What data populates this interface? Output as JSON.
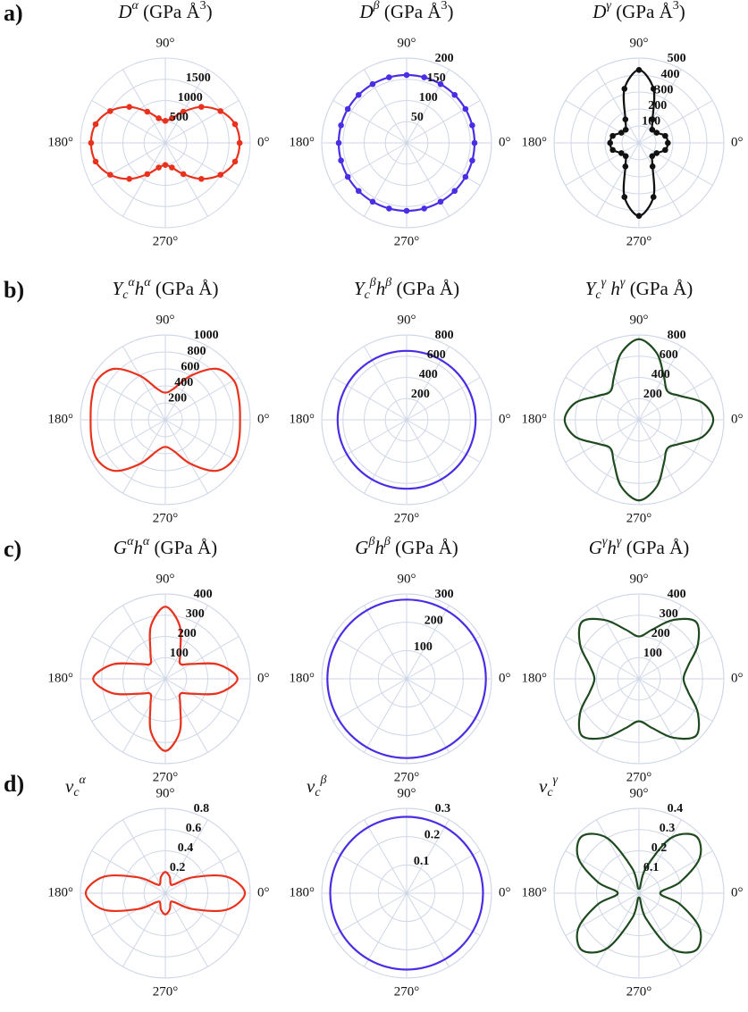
{
  "chart_data": [
    {
      "type": "polar",
      "panel": "a)",
      "title": [
        {
          "text": "D",
          "italic": true
        },
        {
          "text": "α",
          "shift": "sup",
          "italic": true
        },
        {
          "text": " (GPa Å"
        },
        {
          "text": "3",
          "shift": "sup"
        },
        {
          "text": ")"
        }
      ],
      "theta": [
        0,
        15,
        30,
        45,
        60,
        75,
        90,
        105,
        120,
        135,
        150,
        165,
        180,
        195,
        210,
        225,
        240,
        255,
        270,
        285,
        300,
        315,
        330,
        345
      ],
      "values": [
        1750,
        1700,
        1500,
        1200,
        850,
        600,
        520,
        600,
        850,
        1200,
        1500,
        1700,
        1750,
        1700,
        1500,
        1200,
        850,
        600,
        520,
        600,
        850,
        1200,
        1500,
        1700
      ],
      "color": "#e8321e",
      "markers": true,
      "rlim": [
        0,
        2000
      ],
      "rticks": [
        500,
        1000,
        1500
      ],
      "angle_grid_step": 30,
      "thetaticks": [
        {
          "value": 90,
          "label": "90°"
        },
        {
          "value": 180,
          "label": "180°"
        },
        {
          "value": 0,
          "label": "0°"
        },
        {
          "value": 270,
          "label": "270°"
        }
      ]
    },
    {
      "type": "polar",
      "title": [
        {
          "text": "D",
          "italic": true
        },
        {
          "text": "β",
          "shift": "sup",
          "italic": true
        },
        {
          "text": " (GPa Å"
        },
        {
          "text": "3",
          "shift": "sup"
        },
        {
          "text": ")"
        }
      ],
      "theta": [
        0,
        15,
        30,
        45,
        60,
        75,
        90,
        105,
        120,
        135,
        150,
        165,
        180,
        195,
        210,
        225,
        240,
        255,
        270,
        285,
        300,
        315,
        330,
        345
      ],
      "values": [
        160,
        160,
        160,
        160,
        160,
        160,
        160,
        160,
        160,
        160,
        160,
        160,
        160,
        160,
        160,
        160,
        160,
        160,
        160,
        160,
        160,
        160,
        160,
        160
      ],
      "color": "#4a2ee6",
      "markers": true,
      "rlim": [
        0,
        200
      ],
      "rticks": [
        50,
        100,
        150,
        200
      ],
      "angle_grid_step": 30,
      "thetaticks": [
        {
          "value": 90,
          "label": "90°"
        },
        {
          "value": 180,
          "label": "180°"
        },
        {
          "value": 0,
          "label": "0°"
        },
        {
          "value": 270,
          "label": "270°"
        }
      ]
    },
    {
      "type": "polar",
      "title": [
        {
          "text": "D",
          "italic": true
        },
        {
          "text": "γ",
          "shift": "sup",
          "italic": true
        },
        {
          "text": " (GPa Å"
        },
        {
          "text": "3",
          "shift": "sup"
        },
        {
          "text": ")"
        }
      ],
      "theta": [
        0,
        15,
        30,
        45,
        60,
        75,
        90,
        105,
        120,
        135,
        150,
        165,
        180,
        195,
        210,
        225,
        240,
        255,
        270,
        285,
        300,
        315,
        330,
        345
      ],
      "values": [
        170,
        160,
        120,
        110,
        160,
        330,
        430,
        330,
        160,
        110,
        120,
        160,
        170,
        160,
        120,
        110,
        160,
        330,
        430,
        330,
        160,
        110,
        120,
        160
      ],
      "color": "#111111",
      "markers": true,
      "rlim": [
        0,
        500
      ],
      "rticks": [
        100,
        200,
        300,
        400,
        500
      ],
      "angle_grid_step": 30,
      "thetaticks": [
        {
          "value": 90,
          "label": "90°"
        },
        {
          "value": 180,
          "label": "180°"
        },
        {
          "value": 0,
          "label": "0°"
        },
        {
          "value": 270,
          "label": "270°"
        }
      ]
    },
    {
      "type": "polar",
      "panel": "b)",
      "title": [
        {
          "text": "Y",
          "italic": true
        },
        {
          "text": "c",
          "shift": "sub",
          "italic": true
        },
        {
          "text": "α",
          "shift": "sup",
          "italic": true
        },
        {
          "text": "h",
          "italic": true
        },
        {
          "text": "α",
          "shift": "sup",
          "italic": true
        },
        {
          "text": " (GPa Å)"
        }
      ],
      "theta": [
        0,
        15,
        30,
        45,
        60,
        75,
        90,
        105,
        120,
        135,
        150,
        165,
        180,
        195,
        210,
        225,
        240,
        255,
        270,
        285,
        300,
        315,
        330,
        345
      ],
      "values": [
        880,
        900,
        930,
        850,
        600,
        380,
        320,
        380,
        600,
        850,
        930,
        900,
        880,
        900,
        930,
        850,
        600,
        380,
        320,
        380,
        600,
        850,
        930,
        900
      ],
      "color": "#e8321e",
      "markers": false,
      "rlim": [
        0,
        1000
      ],
      "rticks": [
        200,
        400,
        600,
        800,
        1000
      ],
      "angle_grid_step": 30,
      "thetaticks": [
        {
          "value": 90,
          "label": "90°"
        },
        {
          "value": 180,
          "label": "180°"
        },
        {
          "value": 0,
          "label": "0°"
        },
        {
          "value": 270,
          "label": "270°"
        }
      ]
    },
    {
      "type": "polar",
      "title": [
        {
          "text": "Y",
          "italic": true
        },
        {
          "text": "c",
          "shift": "sub",
          "italic": true
        },
        {
          "text": "β",
          "shift": "sup",
          "italic": true
        },
        {
          "text": "h",
          "italic": true
        },
        {
          "text": "β",
          "shift": "sup",
          "italic": true
        },
        {
          "text": " (GPa Å)"
        }
      ],
      "theta": [
        0,
        15,
        30,
        45,
        60,
        75,
        90,
        105,
        120,
        135,
        150,
        165,
        180,
        195,
        210,
        225,
        240,
        255,
        270,
        285,
        300,
        315,
        330,
        345
      ],
      "values": [
        650,
        650,
        650,
        650,
        650,
        650,
        650,
        650,
        650,
        650,
        650,
        650,
        650,
        650,
        650,
        650,
        650,
        650,
        650,
        650,
        650,
        650,
        650,
        650
      ],
      "color": "#4a2ee6",
      "markers": false,
      "rlim": [
        0,
        800
      ],
      "rticks": [
        200,
        400,
        600,
        800
      ],
      "angle_grid_step": 30,
      "thetaticks": [
        {
          "value": 90,
          "label": "90°"
        },
        {
          "value": 180,
          "label": "180°"
        },
        {
          "value": 0,
          "label": "0°"
        },
        {
          "value": 270,
          "label": "270°"
        }
      ]
    },
    {
      "type": "polar",
      "title": [
        {
          "text": "Y",
          "italic": true
        },
        {
          "text": "c",
          "shift": "sub",
          "italic": true
        },
        {
          "text": "γ",
          "shift": "sup",
          "italic": true
        },
        {
          "text": " h",
          "italic": true
        },
        {
          "text": "γ",
          "shift": "sup",
          "italic": true
        },
        {
          "text": " (GPa Å)"
        }
      ],
      "theta": [
        0,
        15,
        30,
        45,
        60,
        75,
        90,
        105,
        120,
        135,
        150,
        165,
        180,
        195,
        210,
        225,
        240,
        255,
        270,
        285,
        300,
        315,
        330,
        345
      ],
      "values": [
        700,
        620,
        450,
        380,
        470,
        650,
        760,
        650,
        470,
        380,
        450,
        620,
        700,
        620,
        450,
        380,
        470,
        650,
        760,
        650,
        470,
        380,
        450,
        620
      ],
      "color": "#1f4a1f",
      "markers": false,
      "rlim": [
        0,
        800
      ],
      "rticks": [
        200,
        400,
        600,
        800
      ],
      "angle_grid_step": 30,
      "thetaticks": [
        {
          "value": 90,
          "label": "90°"
        },
        {
          "value": 180,
          "label": "180°"
        },
        {
          "value": 0,
          "label": "0°"
        },
        {
          "value": 270,
          "label": "270°"
        }
      ]
    },
    {
      "type": "polar",
      "panel": "c)",
      "title": [
        {
          "text": "G",
          "italic": true
        },
        {
          "text": "α",
          "shift": "sup",
          "italic": true
        },
        {
          "text": "h",
          "italic": true
        },
        {
          "text": "α",
          "shift": "sup",
          "italic": true
        },
        {
          "text": "  (GPa Å)"
        }
      ],
      "theta": [
        0,
        15,
        30,
        45,
        60,
        75,
        90,
        105,
        120,
        135,
        150,
        165,
        180,
        195,
        210,
        225,
        240,
        255,
        270,
        285,
        300,
        315,
        330,
        345
      ],
      "values": [
        340,
        260,
        140,
        100,
        140,
        260,
        340,
        260,
        140,
        100,
        140,
        260,
        340,
        260,
        140,
        100,
        140,
        260,
        340,
        260,
        140,
        100,
        140,
        260
      ],
      "color": "#e8321e",
      "markers": false,
      "rlim": [
        0,
        400
      ],
      "rticks": [
        100,
        200,
        300,
        400
      ],
      "angle_grid_step": 30,
      "thetaticks": [
        {
          "value": 90,
          "label": "90°"
        },
        {
          "value": 180,
          "label": "180°"
        },
        {
          "value": 0,
          "label": "0°"
        },
        {
          "value": 270,
          "label": "270°"
        }
      ]
    },
    {
      "type": "polar",
      "title": [
        {
          "text": "G",
          "italic": true
        },
        {
          "text": "β",
          "shift": "sup",
          "italic": true
        },
        {
          "text": "h",
          "italic": true
        },
        {
          "text": "β",
          "shift": "sup",
          "italic": true
        },
        {
          "text": "  (GPa Å)"
        }
      ],
      "theta": [
        0,
        15,
        30,
        45,
        60,
        75,
        90,
        105,
        120,
        135,
        150,
        165,
        180,
        195,
        210,
        225,
        240,
        255,
        270,
        285,
        300,
        315,
        330,
        345
      ],
      "values": [
        280,
        280,
        280,
        280,
        280,
        280,
        280,
        280,
        280,
        280,
        280,
        280,
        280,
        280,
        280,
        280,
        280,
        280,
        280,
        280,
        280,
        280,
        280,
        280
      ],
      "color": "#4a2ee6",
      "markers": false,
      "rlim": [
        0,
        300
      ],
      "rticks": [
        100,
        200,
        300
      ],
      "angle_grid_step": 30,
      "thetaticks": [
        {
          "value": 90,
          "label": "90°"
        },
        {
          "value": 180,
          "label": "180°"
        },
        {
          "value": 0,
          "label": "0°"
        },
        {
          "value": 270,
          "label": "270°"
        }
      ]
    },
    {
      "type": "polar",
      "title": [
        {
          "text": "G",
          "italic": true
        },
        {
          "text": "γ",
          "shift": "sup",
          "italic": true
        },
        {
          "text": "h",
          "italic": true
        },
        {
          "text": "γ",
          "shift": "sup",
          "italic": true
        },
        {
          "text": "  (GPa Å)"
        }
      ],
      "theta": [
        0,
        15,
        30,
        45,
        60,
        75,
        90,
        105,
        120,
        135,
        150,
        165,
        180,
        195,
        210,
        225,
        240,
        255,
        270,
        285,
        300,
        315,
        330,
        345
      ],
      "values": [
        210,
        240,
        320,
        380,
        320,
        240,
        200,
        240,
        320,
        380,
        320,
        240,
        210,
        240,
        320,
        380,
        320,
        240,
        200,
        240,
        320,
        380,
        320,
        240
      ],
      "color": "#1f4a1f",
      "markers": false,
      "rlim": [
        0,
        400
      ],
      "rticks": [
        100,
        200,
        300,
        400
      ],
      "angle_grid_step": 30,
      "thetaticks": [
        {
          "value": 90,
          "label": "90°"
        },
        {
          "value": 180,
          "label": "180°"
        },
        {
          "value": 0,
          "label": "0°"
        },
        {
          "value": 270,
          "label": "270°"
        }
      ]
    },
    {
      "type": "polar",
      "panel": "d)",
      "title_position": "left",
      "title": [
        {
          "text": "ν",
          "italic": true
        },
        {
          "text": "c",
          "shift": "sub",
          "italic": true
        },
        {
          "text": "α",
          "shift": "sup",
          "italic": true
        }
      ],
      "theta": [
        0,
        15,
        30,
        45,
        60,
        75,
        90,
        105,
        120,
        135,
        150,
        165,
        180,
        195,
        210,
        225,
        240,
        255,
        270,
        285,
        300,
        315,
        330,
        345
      ],
      "values": [
        0.75,
        0.6,
        0.3,
        0.12,
        0.1,
        0.16,
        0.2,
        0.16,
        0.1,
        0.12,
        0.3,
        0.6,
        0.75,
        0.6,
        0.3,
        0.12,
        0.1,
        0.16,
        0.2,
        0.16,
        0.1,
        0.12,
        0.3,
        0.6
      ],
      "color": "#e8321e",
      "markers": false,
      "rlim": [
        0,
        0.8
      ],
      "rticks": [
        0.2,
        0.4,
        0.6,
        0.8
      ],
      "angle_grid_step": 30,
      "thetaticks": [
        {
          "value": 90,
          "label": "90°"
        },
        {
          "value": 180,
          "label": "180°"
        },
        {
          "value": 0,
          "label": "0°"
        },
        {
          "value": 270,
          "label": "270°"
        }
      ]
    },
    {
      "type": "polar",
      "title_position": "left",
      "title": [
        {
          "text": "ν",
          "italic": true
        },
        {
          "text": "c",
          "shift": "sub",
          "italic": true
        },
        {
          "text": "β",
          "shift": "sup",
          "italic": true
        }
      ],
      "theta": [
        0,
        15,
        30,
        45,
        60,
        75,
        90,
        105,
        120,
        135,
        150,
        165,
        180,
        195,
        210,
        225,
        240,
        255,
        270,
        285,
        300,
        315,
        330,
        345
      ],
      "values": [
        0.27,
        0.27,
        0.27,
        0.27,
        0.27,
        0.27,
        0.27,
        0.27,
        0.27,
        0.27,
        0.27,
        0.27,
        0.27,
        0.27,
        0.27,
        0.27,
        0.27,
        0.27,
        0.27,
        0.27,
        0.27,
        0.27,
        0.27,
        0.27
      ],
      "color": "#4a2ee6",
      "markers": false,
      "rlim": [
        0,
        0.3
      ],
      "rticks": [
        0.1,
        0.2,
        0.3
      ],
      "angle_grid_step": 30,
      "thetaticks": [
        {
          "value": 90,
          "label": "90°"
        },
        {
          "value": 180,
          "label": "180°"
        },
        {
          "value": 0,
          "label": "0°"
        },
        {
          "value": 270,
          "label": "270°"
        }
      ]
    },
    {
      "type": "polar",
      "title_position": "left",
      "title": [
        {
          "text": "ν",
          "italic": true
        },
        {
          "text": "c",
          "shift": "sub",
          "italic": true
        },
        {
          "text": "γ",
          "shift": "sup",
          "italic": true
        }
      ],
      "theta": [
        0,
        15,
        30,
        45,
        60,
        75,
        90,
        105,
        120,
        135,
        150,
        165,
        180,
        195,
        210,
        225,
        240,
        255,
        270,
        285,
        300,
        315,
        330,
        345
      ],
      "values": [
        0.1,
        0.2,
        0.33,
        0.38,
        0.3,
        0.12,
        0.02,
        0.12,
        0.3,
        0.38,
        0.33,
        0.2,
        0.1,
        0.2,
        0.33,
        0.38,
        0.3,
        0.12,
        0.02,
        0.12,
        0.3,
        0.38,
        0.33,
        0.2
      ],
      "color": "#1f4a1f",
      "markers": false,
      "rlim": [
        0,
        0.4
      ],
      "rticks": [
        0.1,
        0.2,
        0.3,
        0.4
      ],
      "angle_grid_step": 30,
      "thetaticks": [
        {
          "value": 90,
          "label": "90°"
        },
        {
          "value": 180,
          "label": "180°"
        },
        {
          "value": 0,
          "label": "0°"
        },
        {
          "value": 270,
          "label": "270°"
        }
      ]
    }
  ]
}
